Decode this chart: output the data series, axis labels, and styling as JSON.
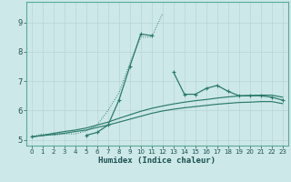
{
  "xlabel": "Humidex (Indice chaleur)",
  "background_color": "#cde8e8",
  "grid_color": "#b8d4d4",
  "line_color": "#2a7a6a",
  "x_values": [
    0,
    1,
    2,
    3,
    4,
    5,
    6,
    7,
    8,
    9,
    10,
    11,
    12,
    13,
    14,
    15,
    16,
    17,
    18,
    19,
    20,
    21,
    22,
    23
  ],
  "line_dotted": [
    5.1,
    5.2,
    5.15,
    5.2,
    5.2,
    5.3,
    5.5,
    6.0,
    6.6,
    7.6,
    8.5,
    8.5,
    9.3,
    null,
    null,
    null,
    null,
    null,
    null,
    null,
    null,
    null,
    null,
    null
  ],
  "line_markers": [
    5.1,
    null,
    null,
    null,
    null,
    5.15,
    5.25,
    5.5,
    6.35,
    7.5,
    8.6,
    8.55,
    null,
    7.3,
    6.55,
    6.55,
    6.75,
    6.85,
    6.65,
    6.5,
    6.5,
    6.5,
    6.45,
    6.35
  ],
  "line_smooth1": [
    5.1,
    5.15,
    5.22,
    5.28,
    5.33,
    5.4,
    5.5,
    5.6,
    5.73,
    5.85,
    5.97,
    6.07,
    6.15,
    6.22,
    6.28,
    6.33,
    6.37,
    6.42,
    6.46,
    6.49,
    6.51,
    6.52,
    6.52,
    6.45
  ],
  "line_smooth2": [
    5.1,
    5.14,
    5.18,
    5.22,
    5.28,
    5.33,
    5.42,
    5.5,
    5.6,
    5.7,
    5.8,
    5.9,
    5.98,
    6.04,
    6.09,
    6.13,
    6.17,
    6.21,
    6.24,
    6.27,
    6.28,
    6.3,
    6.3,
    6.23
  ],
  "ylim": [
    4.8,
    9.7
  ],
  "xlim": [
    -0.5,
    23.5
  ],
  "yticks": [
    5,
    6,
    7,
    8,
    9
  ],
  "xticks": [
    0,
    1,
    2,
    3,
    4,
    5,
    6,
    7,
    8,
    9,
    10,
    11,
    12,
    13,
    14,
    15,
    16,
    17,
    18,
    19,
    20,
    21,
    22,
    23
  ]
}
